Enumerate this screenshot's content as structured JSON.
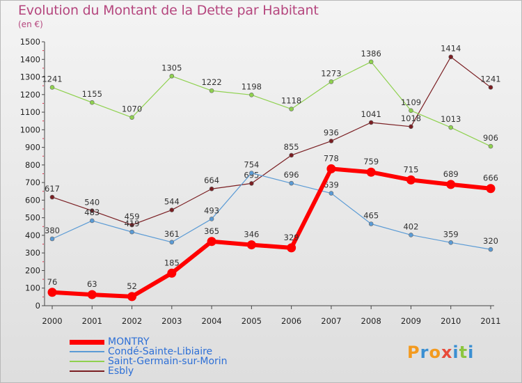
{
  "header": {
    "title": "Evolution du Montant de la Dette par Habitant",
    "unit": "(en €)"
  },
  "logo": {
    "letters": [
      "P",
      "r",
      "o",
      "x",
      "i",
      "t",
      "i"
    ],
    "colors": [
      "#f39a1e",
      "#3a8fd2",
      "#f39a1e",
      "#e84a3a",
      "#3a8fd2",
      "#8cc63f",
      "#3a8fd2"
    ]
  },
  "chart_data": {
    "type": "line",
    "title": "Evolution du Montant de la Dette par Habitant",
    "ylabel": "(en €)",
    "xlabel": "",
    "ylim": [
      0,
      1500
    ],
    "grid": false,
    "legend_position": "bottom",
    "categories": [
      "2000",
      "2001",
      "2002",
      "2003",
      "2004",
      "2005",
      "2006",
      "2007",
      "2008",
      "2009",
      "2010",
      "2011"
    ],
    "yticks": [
      0,
      100,
      200,
      300,
      400,
      500,
      600,
      700,
      800,
      900,
      1000,
      1100,
      1200,
      1300,
      1400,
      1500
    ],
    "series": [
      {
        "name": "Esbly",
        "color": "#7a1e22",
        "values": [
          617,
          540,
          459,
          544,
          664,
          695,
          855,
          936,
          1041,
          1018,
          1414,
          1241
        ]
      },
      {
        "name": "Saint-Germain-sur-Morin",
        "color": "#8fd14f",
        "values": [
          1241,
          1155,
          1070,
          1305,
          1222,
          1198,
          1118,
          1273,
          1386,
          1109,
          1013,
          906
        ]
      },
      {
        "name": "Condé-Sainte-Libiaire",
        "color": "#5b9bd5",
        "values": [
          380,
          483,
          419,
          361,
          493,
          754,
          696,
          639,
          465,
          402,
          359,
          320
        ]
      },
      {
        "name": "MONTRY",
        "color": "#ff0000",
        "values": [
          76,
          63,
          52,
          185,
          365,
          346,
          329,
          778,
          759,
          715,
          689,
          666
        ]
      }
    ]
  }
}
